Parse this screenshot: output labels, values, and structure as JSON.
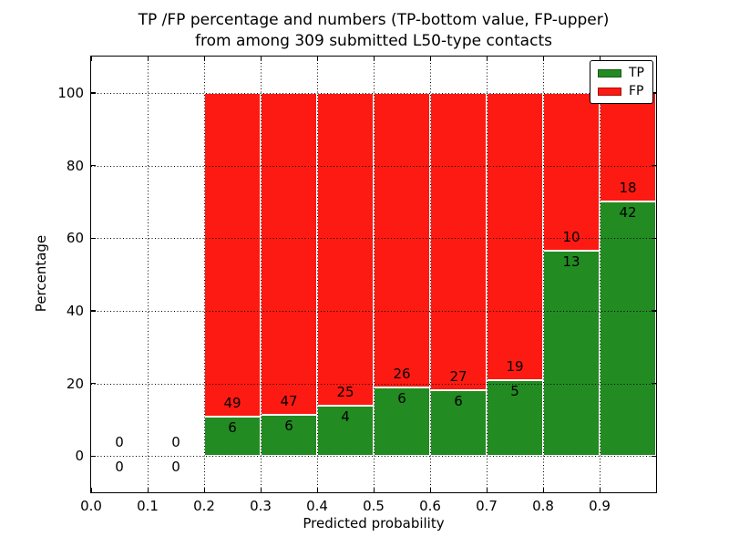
{
  "title": {
    "line1": "TP /FP percentage and numbers (TP-bottom value, FP-upper)",
    "line2": "from among 309 submitted L50-type contacts"
  },
  "axes": {
    "xlabel": "Predicted probability",
    "ylabel": "Percentage",
    "yticks": [
      0,
      20,
      40,
      60,
      80,
      100
    ],
    "xtick_labels": [
      "0.0",
      "0.1",
      "0.2",
      "0.3",
      "0.4",
      "0.5",
      "0.6",
      "0.7",
      "0.8",
      "0.9"
    ],
    "xlim": [
      0,
      1.0
    ],
    "ylim": [
      -10,
      110
    ],
    "grid_style": "dotted"
  },
  "legend": [
    {
      "label": "TP",
      "color": "#228b22"
    },
    {
      "label": "FP",
      "color": "#fd1a12"
    }
  ],
  "colors": {
    "tp": "#228b22",
    "fp": "#fd1a12",
    "bar_edge": "#ffffff",
    "grid": "#000000",
    "text": "#000000",
    "background": "#ffffff"
  },
  "chart_data": {
    "type": "bar",
    "stacked": true,
    "units": "percent",
    "total_contacts": 309,
    "title": "TP /FP percentage and numbers (TP-bottom value, FP-upper) from among 309 submitted L50-type contacts",
    "xlabel": "Predicted probability",
    "ylabel": "Percentage",
    "xlim": [
      0,
      1.0
    ],
    "ylim": [
      -10,
      110
    ],
    "grid": "dotted",
    "legend_position": "upper right",
    "bin_width": 0.1,
    "bins": [
      {
        "x_start": 0.0,
        "tp_count": 0,
        "fp_count": 0,
        "tp_percent": null,
        "fp_percent": null
      },
      {
        "x_start": 0.1,
        "tp_count": 0,
        "fp_count": 0,
        "tp_percent": null,
        "fp_percent": null
      },
      {
        "x_start": 0.2,
        "tp_count": 6,
        "fp_count": 49,
        "tp_percent": 10.91,
        "fp_percent": 89.09
      },
      {
        "x_start": 0.3,
        "tp_count": 6,
        "fp_count": 47,
        "tp_percent": 11.32,
        "fp_percent": 88.68
      },
      {
        "x_start": 0.4,
        "tp_count": 4,
        "fp_count": 25,
        "tp_percent": 13.79,
        "fp_percent": 86.21
      },
      {
        "x_start": 0.5,
        "tp_count": 6,
        "fp_count": 26,
        "tp_percent": 18.75,
        "fp_percent": 81.25
      },
      {
        "x_start": 0.6,
        "tp_count": 6,
        "fp_count": 27,
        "tp_percent": 18.18,
        "fp_percent": 81.82
      },
      {
        "x_start": 0.7,
        "tp_count": 5,
        "fp_count": 19,
        "tp_percent": 20.83,
        "fp_percent": 79.17
      },
      {
        "x_start": 0.8,
        "tp_count": 13,
        "fp_count": 10,
        "tp_percent": 56.52,
        "fp_percent": 43.48
      },
      {
        "x_start": 0.9,
        "tp_count": 42,
        "fp_count": 18,
        "tp_percent": 70.0,
        "fp_percent": 30.0
      }
    ]
  }
}
